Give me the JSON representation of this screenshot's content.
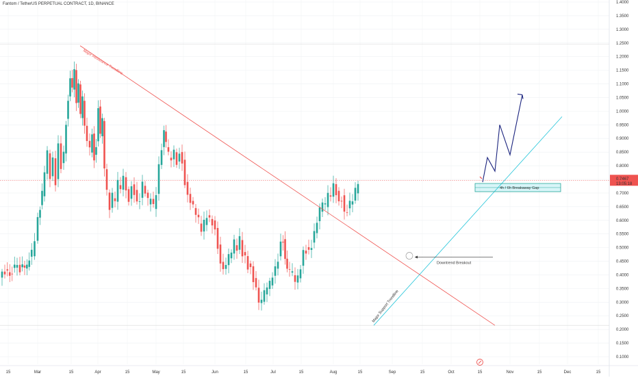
{
  "chart_data": {
    "type": "candlestick",
    "title": "Fantom / TetherUS PERPETUAL CONTRACT, 1D, BINANCE",
    "price_axis": {
      "min": 0.1,
      "max": 1.4,
      "tick_labels": [
        "1.4000",
        "1.3500",
        "1.3000",
        "1.2500",
        "1.2000",
        "1.1500",
        "1.1000",
        "1.0500",
        "1.0000",
        "0.9500",
        "0.9000",
        "0.8500",
        "0.8000",
        "0.7500",
        "0.7000",
        "0.6500",
        "0.6000",
        "0.5500",
        "0.5000",
        "0.4500",
        "0.4000",
        "0.3500",
        "0.3000",
        "0.2500",
        "0.2000",
        "0.1500",
        "0.1000"
      ]
    },
    "time_axis": {
      "tick_labels": [
        "15",
        "Mar",
        "15",
        "Apr",
        "15",
        "May",
        "15",
        "Jun",
        "15",
        "Jul",
        "15",
        "Aug",
        "15",
        "Sep",
        "15",
        "Oct",
        "15",
        "Nov",
        "15",
        "Dec",
        "15"
      ]
    },
    "last_price": {
      "value": "0.7467",
      "countdown": "13:05:18",
      "color": "#ef5350"
    },
    "colors": {
      "up": "#26a69a",
      "down": "#ef5350",
      "resistance": "#ef5350",
      "support": "#26c6da",
      "projection": "#1a237e"
    },
    "annotations": {
      "resistance_label": "Major Resistance Trendline",
      "support_label": "Major Support Trendline",
      "breakout_label": "Downtrend Breakout",
      "gap_label": "4h / 6h Breakaway Gap"
    },
    "series_close_path": [
      [
        0,
        0.39
      ],
      [
        8,
        0.41
      ],
      [
        15,
        0.4
      ],
      [
        22,
        0.43
      ],
      [
        30,
        0.42
      ],
      [
        40,
        0.44
      ],
      [
        47,
        0.48
      ],
      [
        52,
        0.52
      ],
      [
        56,
        0.6
      ],
      [
        62,
        0.7
      ],
      [
        66,
        0.78
      ],
      [
        70,
        0.85
      ],
      [
        74,
        0.76
      ],
      [
        78,
        0.82
      ],
      [
        82,
        0.74
      ],
      [
        86,
        0.87
      ],
      [
        90,
        0.8
      ],
      [
        94,
        0.84
      ],
      [
        97,
        0.96
      ],
      [
        100,
        1.05
      ],
      [
        103,
        1.13
      ],
      [
        106,
        1.09
      ],
      [
        109,
        1.15
      ],
      [
        112,
        1.02
      ],
      [
        115,
        1.09
      ],
      [
        118,
        0.98
      ],
      [
        121,
        1.05
      ],
      [
        124,
        0.95
      ],
      [
        128,
        0.9
      ],
      [
        132,
        0.86
      ],
      [
        135,
        0.92
      ],
      [
        138,
        0.83
      ],
      [
        141,
        0.88
      ],
      [
        144,
        1.02
      ],
      [
        147,
        0.92
      ],
      [
        150,
        0.97
      ],
      [
        153,
        0.78
      ],
      [
        157,
        0.7
      ],
      [
        161,
        0.65
      ],
      [
        165,
        0.69
      ],
      [
        169,
        0.68
      ],
      [
        173,
        0.74
      ],
      [
        177,
        0.72
      ],
      [
        181,
        0.76
      ],
      [
        185,
        0.71
      ],
      [
        189,
        0.67
      ],
      [
        193,
        0.72
      ],
      [
        197,
        0.7
      ],
      [
        201,
        0.66
      ],
      [
        205,
        0.68
      ],
      [
        209,
        0.73
      ],
      [
        213,
        0.71
      ],
      [
        217,
        0.67
      ],
      [
        221,
        0.69
      ],
      [
        225,
        0.65
      ],
      [
        229,
        0.7
      ],
      [
        233,
        0.8
      ],
      [
        237,
        0.86
      ],
      [
        240,
        0.93
      ],
      [
        243,
        0.88
      ],
      [
        247,
        0.84
      ],
      [
        251,
        0.83
      ],
      [
        255,
        0.85
      ],
      [
        259,
        0.81
      ],
      [
        263,
        0.84
      ],
      [
        267,
        0.81
      ],
      [
        271,
        0.73
      ],
      [
        275,
        0.69
      ],
      [
        279,
        0.67
      ],
      [
        283,
        0.65
      ],
      [
        287,
        0.63
      ],
      [
        291,
        0.6
      ],
      [
        295,
        0.57
      ],
      [
        299,
        0.59
      ],
      [
        303,
        0.62
      ],
      [
        307,
        0.6
      ],
      [
        311,
        0.59
      ],
      [
        315,
        0.56
      ],
      [
        319,
        0.5
      ],
      [
        323,
        0.44
      ],
      [
        327,
        0.42
      ],
      [
        331,
        0.44
      ],
      [
        335,
        0.47
      ],
      [
        339,
        0.49
      ],
      [
        343,
        0.52
      ],
      [
        347,
        0.5
      ],
      [
        351,
        0.53
      ],
      [
        355,
        0.48
      ],
      [
        359,
        0.46
      ],
      [
        363,
        0.43
      ],
      [
        367,
        0.42
      ],
      [
        371,
        0.38
      ],
      [
        375,
        0.35
      ],
      [
        379,
        0.3
      ],
      [
        383,
        0.31
      ],
      [
        387,
        0.34
      ],
      [
        391,
        0.36
      ],
      [
        395,
        0.37
      ],
      [
        399,
        0.4
      ],
      [
        403,
        0.42
      ],
      [
        407,
        0.46
      ],
      [
        411,
        0.51
      ],
      [
        414,
        0.53
      ],
      [
        417,
        0.47
      ],
      [
        420,
        0.43
      ],
      [
        424,
        0.42
      ],
      [
        428,
        0.41
      ],
      [
        432,
        0.38
      ],
      [
        436,
        0.39
      ],
      [
        440,
        0.43
      ],
      [
        444,
        0.48
      ],
      [
        448,
        0.49
      ],
      [
        452,
        0.48
      ],
      [
        456,
        0.51
      ],
      [
        460,
        0.55
      ],
      [
        464,
        0.6
      ],
      [
        468,
        0.64
      ],
      [
        472,
        0.67
      ],
      [
        476,
        0.66
      ],
      [
        480,
        0.7
      ],
      [
        484,
        0.69
      ],
      [
        488,
        0.73
      ],
      [
        492,
        0.7
      ],
      [
        496,
        0.66
      ],
      [
        500,
        0.68
      ],
      [
        504,
        0.62
      ],
      [
        508,
        0.64
      ],
      [
        512,
        0.66
      ],
      [
        516,
        0.68
      ],
      [
        520,
        0.71
      ],
      [
        524,
        0.74
      ]
    ]
  }
}
